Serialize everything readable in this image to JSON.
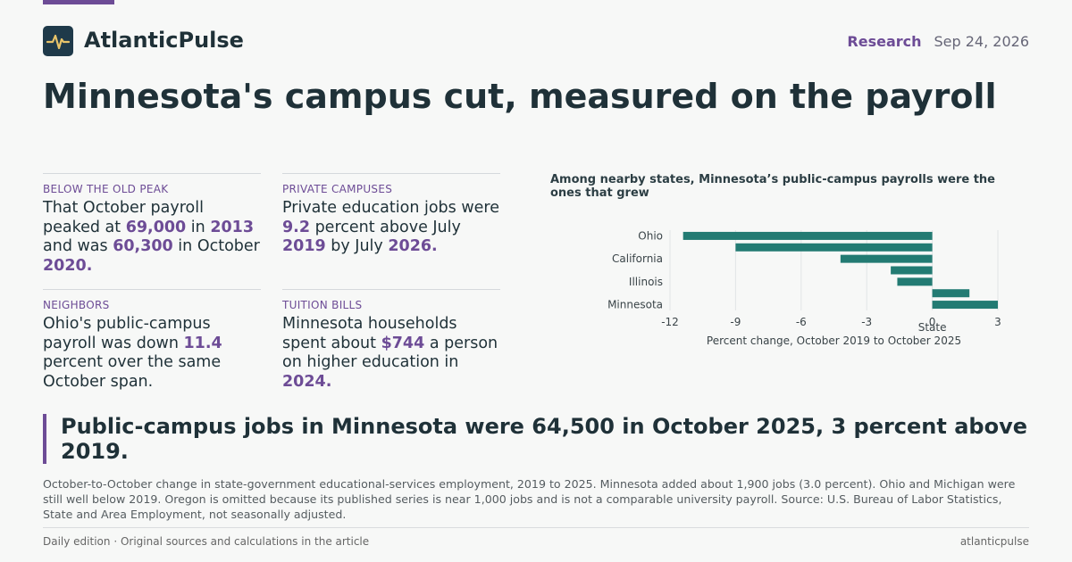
{
  "header": {
    "brand": "AtlanticPulse",
    "section": "Research",
    "date": "Sep 24, 2026"
  },
  "headline": "Minnesota's campus cut, measured on the payroll",
  "facts": [
    {
      "label": "BELOW THE OLD PEAK",
      "parts": [
        "That October payroll peaked at ",
        "69,000",
        " in ",
        "2013",
        " and was ",
        "60,300",
        " in October ",
        "2020."
      ]
    },
    {
      "label": "PRIVATE CAMPUSES",
      "parts": [
        "Private education jobs were ",
        "9.2",
        " percent above July ",
        "2019",
        " by July ",
        "2026."
      ]
    },
    {
      "label": "NEIGHBORS",
      "parts": [
        "Ohio's public-campus payroll was down ",
        "11.4",
        " percent over the same October span."
      ]
    },
    {
      "label": "TUITION BILLS",
      "parts": [
        "Minnesota households spent about ",
        "$744",
        " a person on higher education in ",
        "2024."
      ]
    }
  ],
  "chart_data": {
    "type": "bar",
    "orientation": "horizontal",
    "title": "Among nearby states, Minnesota’s public-campus payrolls were the ones that grew",
    "categories": [
      "Ohio",
      null,
      "California",
      null,
      "Illinois",
      null,
      "Minnesota"
    ],
    "values": [
      -11.4,
      -9.0,
      -4.2,
      -1.9,
      -1.6,
      1.7,
      3.0
    ],
    "color": "#237b73",
    "xlim": [
      -12,
      3
    ],
    "xticks": [
      -12,
      -9,
      -6,
      -3,
      0,
      3
    ],
    "xlabel": "Percent change, October 2019 to October 2025",
    "ylabel": "State",
    "grid": true
  },
  "callout": "Public-campus jobs in Minnesota were 64,500 in October 2025, 3 percent above 2019.",
  "note": "October-to-October change in state-government educational-services employment, 2019 to 2025. Minnesota added about 1,900 jobs (3.0 percent). Ohio and Michigan were still well below 2019. Oregon is omitted because its published series is near 1,000 jobs and is not a comparable university payroll. Source: U.S. Bureau of Labor Statistics, State and Area Employment, not seasonally adjusted.",
  "footer": {
    "left": "Daily edition · Original sources and calculations in the article",
    "right": "atlanticpulse"
  }
}
